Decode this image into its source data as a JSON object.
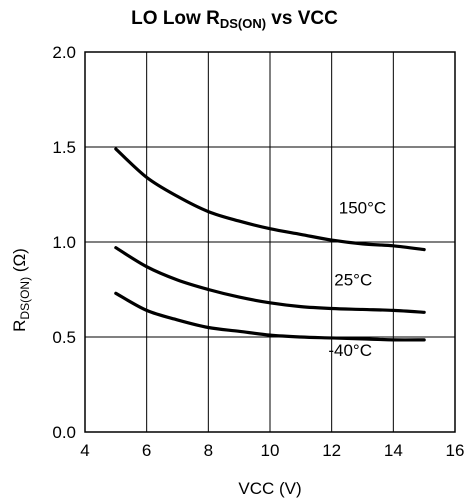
{
  "chart_data": {
    "type": "line",
    "title": {
      "prefix": "LO Low R",
      "subscript": "DS(ON)",
      "suffix": " vs VCC"
    },
    "xlabel": "VCC (V)",
    "ylabel": {
      "prefix": "R",
      "subscript": "DS(ON)",
      "suffix": " (Ω)"
    },
    "xlim": [
      4,
      16
    ],
    "ylim": [
      0,
      2.0
    ],
    "xticks": [
      "4",
      "6",
      "8",
      "10",
      "12",
      "14",
      "16"
    ],
    "yticks": [
      "0.0",
      "0.5",
      "1.0",
      "1.5",
      "2.0"
    ],
    "grid": true,
    "legend": "none",
    "series": [
      {
        "name": "150°C",
        "label_at": [
          13.0,
          1.15
        ],
        "x": [
          5,
          6,
          7,
          8,
          9,
          10,
          11,
          12,
          13,
          14,
          15
        ],
        "y": [
          1.49,
          1.34,
          1.24,
          1.16,
          1.11,
          1.07,
          1.04,
          1.01,
          0.99,
          0.98,
          0.96
        ]
      },
      {
        "name": "25°C",
        "label_at": [
          12.7,
          0.77
        ],
        "x": [
          5,
          6,
          7,
          8,
          9,
          10,
          11,
          12,
          13,
          14,
          15
        ],
        "y": [
          0.97,
          0.87,
          0.8,
          0.75,
          0.71,
          0.68,
          0.66,
          0.65,
          0.645,
          0.64,
          0.63
        ]
      },
      {
        "name": "-40°C",
        "label_at": [
          12.6,
          0.4
        ],
        "x": [
          5,
          6,
          7,
          8,
          9,
          10,
          11,
          12,
          13,
          14,
          15
        ],
        "y": [
          0.73,
          0.64,
          0.59,
          0.55,
          0.53,
          0.51,
          0.5,
          0.495,
          0.49,
          0.485,
          0.485
        ]
      }
    ]
  }
}
